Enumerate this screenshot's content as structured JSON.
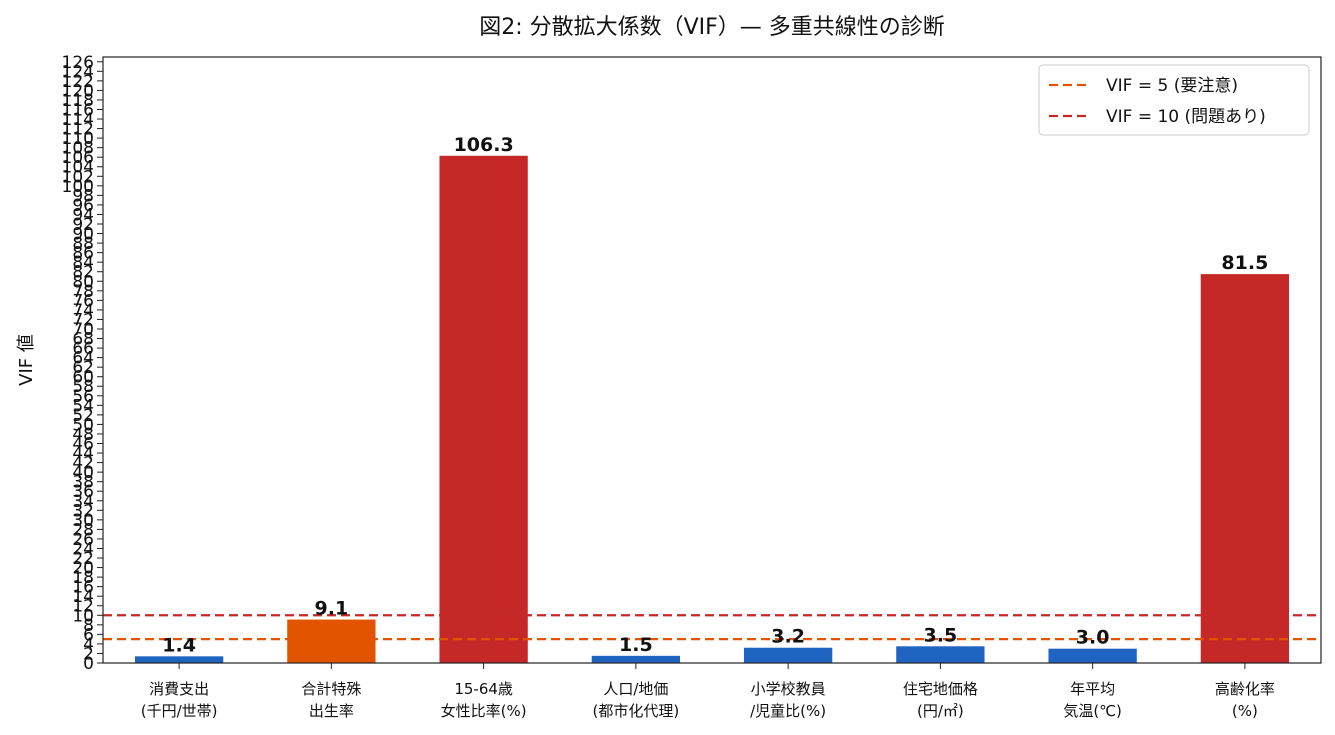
{
  "chart_data": {
    "type": "bar",
    "title": "図2: 分散拡大係数（VIF）— 多重共線性の診断",
    "xlabel": "",
    "ylabel": "VIF 値",
    "ylim": [
      0,
      127
    ],
    "yticks": [
      0,
      2,
      4,
      6,
      8,
      10,
      12,
      14,
      16,
      18,
      20,
      22,
      24,
      26,
      28,
      30,
      32,
      34,
      36,
      38,
      40,
      42,
      44,
      46,
      48,
      50,
      52,
      54,
      56,
      58,
      60,
      62,
      64,
      66,
      68,
      70,
      72,
      74,
      76,
      78,
      80,
      82,
      84,
      86,
      88,
      90,
      92,
      94,
      96,
      98,
      100,
      102,
      104,
      106,
      108,
      110,
      112,
      114,
      116,
      118,
      120,
      122,
      124,
      126
    ],
    "categories": [
      [
        "消費支出",
        "(千円/世帯)"
      ],
      [
        "合計特殊",
        "出生率"
      ],
      [
        "15-64歳",
        "女性比率(%)"
      ],
      [
        "人口/地価",
        "(都市化代理)"
      ],
      [
        "小学校教員",
        "/児童比(%)"
      ],
      [
        "住宅地価格",
        "(円/㎡)"
      ],
      [
        "年平均",
        "気温(℃)"
      ],
      [
        "高齢化率",
        "(%)"
      ]
    ],
    "values": [
      1.4,
      9.1,
      106.3,
      1.5,
      3.2,
      3.5,
      3.0,
      81.5
    ],
    "value_labels": [
      "1.4",
      "9.1",
      "106.3",
      "1.5",
      "3.2",
      "3.5",
      "3.0",
      "81.5"
    ],
    "bar_colors": [
      "#1f64c0",
      "#e35400",
      "#c62828",
      "#1f64c0",
      "#1f64c0",
      "#1f64c0",
      "#1f64c0",
      "#c62828"
    ],
    "reference_lines": [
      {
        "name": "VIF = 5 (要注意)",
        "value": 5,
        "color": "#e35400",
        "style": "dashed"
      },
      {
        "name": "VIF = 10 (問題あり)",
        "value": 10,
        "color": "#c62828",
        "style": "dashed"
      }
    ],
    "legend_position": "top-right",
    "grid": false
  }
}
